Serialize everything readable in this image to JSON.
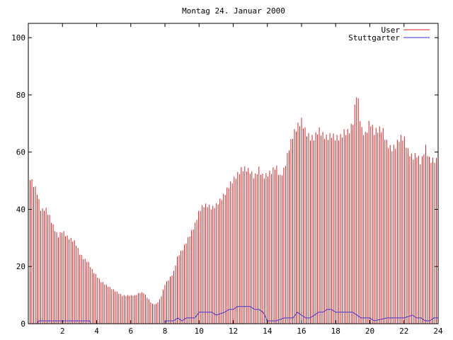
{
  "chart_data": {
    "type": "bar",
    "title": "Montag 24. Januar 2000",
    "xlabel": "",
    "ylabel": "",
    "xlim": [
      0,
      24
    ],
    "ylim": [
      0,
      105
    ],
    "x_ticks": [
      2,
      4,
      6,
      8,
      10,
      12,
      14,
      16,
      18,
      20,
      22,
      24
    ],
    "x_tick_labels": [
      "2",
      "4",
      "6",
      "8",
      "10",
      "12",
      "14",
      "16",
      "18",
      "20",
      "22",
      "24"
    ],
    "y_ticks": [
      0,
      20,
      40,
      60,
      80,
      100
    ],
    "y_tick_labels": [
      "0",
      "20",
      "40",
      "60",
      "80",
      "100"
    ],
    "grid": false,
    "legend_position": "top-right",
    "series": [
      {
        "name": "User",
        "style": "impulses",
        "color": "#dd2222",
        "points": [
          [
            0.0,
            53
          ],
          [
            0.5,
            47
          ],
          [
            0.75,
            40
          ],
          [
            1.0,
            41
          ],
          [
            1.25,
            38
          ],
          [
            1.5,
            34
          ],
          [
            1.75,
            31
          ],
          [
            2.0,
            33
          ],
          [
            2.25,
            31
          ],
          [
            2.5,
            30
          ],
          [
            2.75,
            29
          ],
          [
            3.0,
            25
          ],
          [
            3.25,
            23
          ],
          [
            3.5,
            22
          ],
          [
            3.75,
            19
          ],
          [
            4.0,
            17
          ],
          [
            4.25,
            15
          ],
          [
            4.5,
            14
          ],
          [
            4.75,
            13
          ],
          [
            5.0,
            12
          ],
          [
            5.25,
            11
          ],
          [
            5.5,
            10
          ],
          [
            5.75,
            10
          ],
          [
            6.0,
            10
          ],
          [
            6.25,
            10
          ],
          [
            6.5,
            11
          ],
          [
            6.75,
            11
          ],
          [
            7.0,
            9
          ],
          [
            7.25,
            7
          ],
          [
            7.5,
            7
          ],
          [
            7.75,
            9
          ],
          [
            8.0,
            14
          ],
          [
            8.25,
            16
          ],
          [
            8.5,
            18
          ],
          [
            8.75,
            24
          ],
          [
            9.0,
            26
          ],
          [
            9.25,
            29
          ],
          [
            9.5,
            32
          ],
          [
            9.75,
            35
          ],
          [
            10.0,
            40
          ],
          [
            10.25,
            42
          ],
          [
            10.5,
            42
          ],
          [
            10.75,
            41
          ],
          [
            11.0,
            42
          ],
          [
            11.25,
            44
          ],
          [
            11.5,
            46
          ],
          [
            11.75,
            49
          ],
          [
            12.0,
            51
          ],
          [
            12.25,
            53
          ],
          [
            12.5,
            55
          ],
          [
            12.75,
            55
          ],
          [
            13.0,
            54
          ],
          [
            13.25,
            52
          ],
          [
            13.5,
            55
          ],
          [
            13.75,
            52
          ],
          [
            14.0,
            53
          ],
          [
            14.25,
            54
          ],
          [
            14.5,
            56
          ],
          [
            14.75,
            52
          ],
          [
            15.0,
            55
          ],
          [
            15.25,
            62
          ],
          [
            15.5,
            67
          ],
          [
            15.75,
            70
          ],
          [
            16.0,
            72
          ],
          [
            16.25,
            68
          ],
          [
            16.5,
            66
          ],
          [
            16.75,
            66
          ],
          [
            17.0,
            69
          ],
          [
            17.25,
            67
          ],
          [
            17.5,
            66
          ],
          [
            17.75,
            67
          ],
          [
            18.0,
            66
          ],
          [
            18.25,
            66
          ],
          [
            18.5,
            68
          ],
          [
            18.75,
            68
          ],
          [
            19.0,
            71
          ],
          [
            19.25,
            83
          ],
          [
            19.5,
            69
          ],
          [
            19.75,
            67
          ],
          [
            20.0,
            72
          ],
          [
            20.25,
            68
          ],
          [
            20.5,
            69
          ],
          [
            20.75,
            69
          ],
          [
            21.0,
            64
          ],
          [
            21.25,
            62
          ],
          [
            21.5,
            63
          ],
          [
            21.75,
            66
          ],
          [
            22.0,
            66
          ],
          [
            22.25,
            61
          ],
          [
            22.5,
            59
          ],
          [
            22.75,
            60
          ],
          [
            23.0,
            57
          ],
          [
            23.25,
            63
          ],
          [
            23.5,
            58
          ],
          [
            23.75,
            58
          ],
          [
            24.0,
            58
          ]
        ]
      },
      {
        "name": "Stuttgarter",
        "style": "line",
        "color": "#3333cc",
        "points": [
          [
            0.0,
            0
          ],
          [
            0.5,
            0
          ],
          [
            0.6,
            1
          ],
          [
            1.0,
            1
          ],
          [
            2.0,
            1
          ],
          [
            3.0,
            1
          ],
          [
            3.6,
            1
          ],
          [
            3.65,
            0
          ],
          [
            8.0,
            0
          ],
          [
            8.05,
            1
          ],
          [
            8.5,
            1
          ],
          [
            8.75,
            2
          ],
          [
            9.0,
            1
          ],
          [
            9.25,
            2
          ],
          [
            9.5,
            2
          ],
          [
            9.75,
            2
          ],
          [
            10.0,
            4
          ],
          [
            10.5,
            4
          ],
          [
            10.75,
            4
          ],
          [
            11.0,
            3
          ],
          [
            11.5,
            4
          ],
          [
            11.75,
            5
          ],
          [
            12.0,
            5
          ],
          [
            12.25,
            6
          ],
          [
            12.5,
            6
          ],
          [
            12.75,
            6
          ],
          [
            13.0,
            6
          ],
          [
            13.25,
            5
          ],
          [
            13.5,
            5
          ],
          [
            13.75,
            4
          ],
          [
            14.0,
            1
          ],
          [
            14.5,
            1
          ],
          [
            15.0,
            2
          ],
          [
            15.5,
            2
          ],
          [
            15.75,
            4
          ],
          [
            16.0,
            3
          ],
          [
            16.25,
            2
          ],
          [
            16.5,
            2
          ],
          [
            16.75,
            3
          ],
          [
            17.0,
            4
          ],
          [
            17.25,
            4
          ],
          [
            17.5,
            5
          ],
          [
            17.75,
            5
          ],
          [
            18.0,
            4
          ],
          [
            18.5,
            4
          ],
          [
            18.75,
            4
          ],
          [
            19.0,
            4
          ],
          [
            19.25,
            3
          ],
          [
            19.5,
            2
          ],
          [
            19.75,
            2
          ],
          [
            20.0,
            2
          ],
          [
            20.25,
            1
          ],
          [
            21.0,
            2
          ],
          [
            22.0,
            2
          ],
          [
            22.5,
            3
          ],
          [
            22.75,
            2
          ],
          [
            23.0,
            2
          ],
          [
            23.25,
            1
          ],
          [
            23.5,
            1
          ],
          [
            23.75,
            2
          ],
          [
            24.0,
            2
          ]
        ]
      }
    ]
  }
}
